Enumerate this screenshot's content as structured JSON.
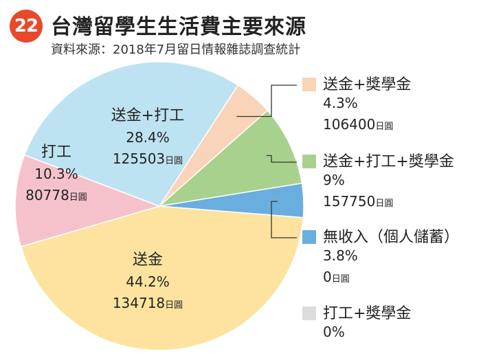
{
  "header": {
    "badge": "22",
    "title": "台灣留學生生活費主要來源",
    "subtitle": "資料來源：2018年7月留日情報雜誌調查統計"
  },
  "unit": "日圓",
  "chart_data": {
    "type": "pie",
    "title": "台灣留學生生活費主要來源",
    "subtitle": "資料來源：2018年7月留日情報雜誌調查統計",
    "slices": [
      {
        "name": "送金+獎學金",
        "percent": 4.3,
        "percent_label": "4.3%",
        "amount": "106400",
        "color": "#f9d4b8"
      },
      {
        "name": "送金+打工+獎學金",
        "percent": 9,
        "percent_label": "9%",
        "amount": "157750",
        "color": "#a9d18e"
      },
      {
        "name": "無收入（個人儲蓄）",
        "percent": 3.8,
        "percent_label": "3.8%",
        "amount": "0",
        "color": "#6aaee0"
      },
      {
        "name": "送金",
        "percent": 44.2,
        "percent_label": "44.2%",
        "amount": "134718",
        "color": "#fde39f"
      },
      {
        "name": "打工",
        "percent": 10.3,
        "percent_label": "10.3%",
        "amount": "80778",
        "color": "#f5c2cc"
      },
      {
        "name": "送金+打工",
        "percent": 28.4,
        "percent_label": "28.4%",
        "amount": "125503",
        "color": "#bde3f2"
      },
      {
        "name": "打工+獎學金",
        "percent": 0,
        "percent_label": "0%",
        "amount": "",
        "color": "#dcdcdc"
      }
    ]
  }
}
